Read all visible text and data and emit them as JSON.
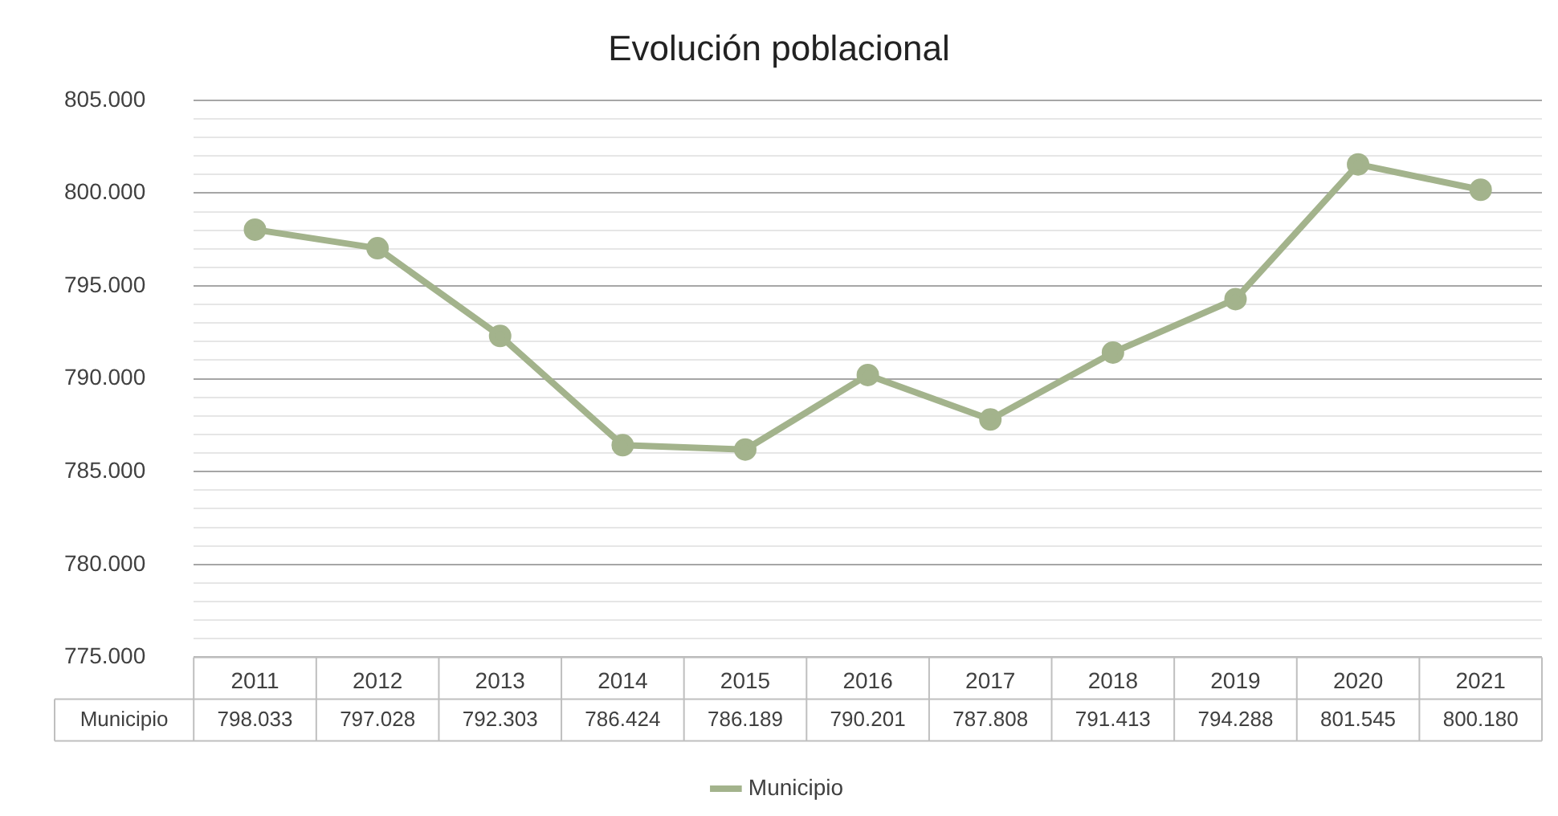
{
  "chart_data": {
    "type": "line",
    "title": "Evolución poblacional",
    "categories": [
      "2011",
      "2012",
      "2013",
      "2014",
      "2015",
      "2016",
      "2017",
      "2018",
      "2019",
      "2020",
      "2021"
    ],
    "series": [
      {
        "name": "Municipio",
        "color": "#a3b38c",
        "values": [
          798033,
          797028,
          792303,
          786424,
          786189,
          790201,
          787808,
          791413,
          794288,
          801545,
          800180
        ],
        "value_labels": [
          "798.033",
          "797.028",
          "792.303",
          "786.424",
          "786.189",
          "790.201",
          "787.808",
          "791.413",
          "794.288",
          "801.545",
          "800.180"
        ]
      }
    ],
    "ylim": [
      775000,
      805000
    ],
    "yticks": [
      {
        "value": 775000,
        "label": "775.000"
      },
      {
        "value": 776000,
        "label": null
      },
      {
        "value": 777000,
        "label": null
      },
      {
        "value": 778000,
        "label": null
      },
      {
        "value": 779000,
        "label": null
      },
      {
        "value": 780000,
        "label": "780.000"
      },
      {
        "value": 781000,
        "label": null
      },
      {
        "value": 782000,
        "label": null
      },
      {
        "value": 783000,
        "label": null
      },
      {
        "value": 784000,
        "label": null
      },
      {
        "value": 785000,
        "label": "785.000"
      },
      {
        "value": 786000,
        "label": null
      },
      {
        "value": 787000,
        "label": null
      },
      {
        "value": 788000,
        "label": null
      },
      {
        "value": 789000,
        "label": null
      },
      {
        "value": 790000,
        "label": "790.000"
      },
      {
        "value": 791000,
        "label": null
      },
      {
        "value": 792000,
        "label": null
      },
      {
        "value": 793000,
        "label": null
      },
      {
        "value": 794000,
        "label": null
      },
      {
        "value": 795000,
        "label": "795.000"
      },
      {
        "value": 796000,
        "label": null
      },
      {
        "value": 797000,
        "label": null
      },
      {
        "value": 798000,
        "label": null
      },
      {
        "value": 799000,
        "label": null
      },
      {
        "value": 800000,
        "label": "800.000"
      },
      {
        "value": 801000,
        "label": null
      },
      {
        "value": 802000,
        "label": null
      },
      {
        "value": 803000,
        "label": null
      },
      {
        "value": 804000,
        "label": null
      },
      {
        "value": 805000,
        "label": "805.000"
      }
    ],
    "grid": "y",
    "legend": "bottom",
    "marker": "circle",
    "line_style": "solid"
  }
}
